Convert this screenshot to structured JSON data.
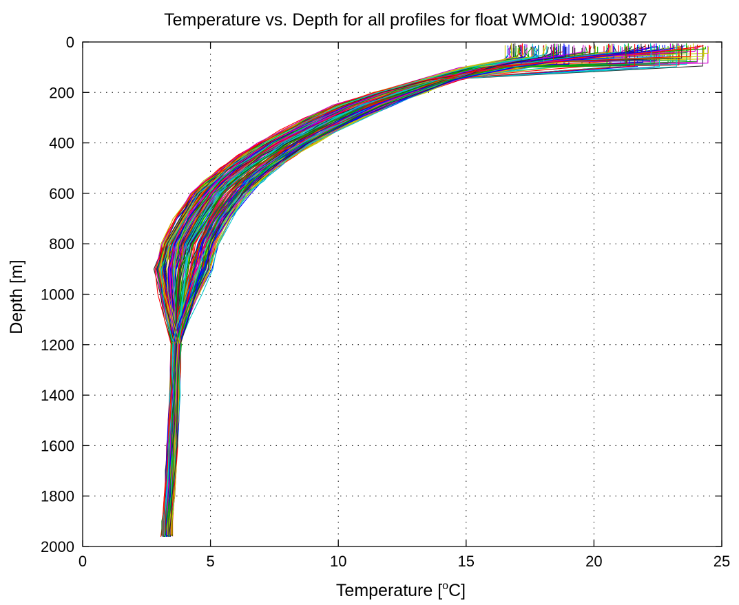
{
  "chart_data": {
    "type": "line",
    "title": "Temperature vs. Depth for all profiles for float WMOId: 1900387",
    "xlabel_main": "Temperature [",
    "xlabel_sup": "o",
    "xlabel_end": "C]",
    "ylabel": "Depth [m]",
    "xlim": [
      0,
      25
    ],
    "ylim": [
      0,
      2000
    ],
    "y_reversed": true,
    "grid": true,
    "xticks": [
      0,
      5,
      10,
      15,
      20,
      25
    ],
    "yticks": [
      0,
      200,
      400,
      600,
      800,
      1000,
      1200,
      1400,
      1600,
      1800,
      2000
    ],
    "xtick_labels": [
      "0",
      "5",
      "10",
      "15",
      "20",
      "25"
    ],
    "ytick_labels": [
      "0",
      "200",
      "400",
      "600",
      "800",
      "1000",
      "1200",
      "1400",
      "1600",
      "1800",
      "2000"
    ],
    "series_colors": [
      "#0000ff",
      "#00aa00",
      "#ff0000",
      "#00c8c8",
      "#cc00cc",
      "#c8c800",
      "#2a2a2a"
    ],
    "profile_count": 200,
    "representative_profile": {
      "depth": [
        5,
        20,
        40,
        60,
        80,
        100,
        150,
        200,
        250,
        300,
        350,
        400,
        450,
        500,
        550,
        600,
        700,
        800,
        900,
        1000,
        1100,
        1200,
        1300,
        1400,
        1500,
        1600,
        1700,
        1800,
        1900,
        1960
      ],
      "temperature": [
        21.0,
        21.0,
        21.0,
        19.0,
        17.5,
        16.2,
        14.0,
        12.4,
        11.0,
        9.9,
        8.9,
        8.0,
        7.2,
        6.5,
        5.9,
        5.4,
        4.7,
        4.2,
        3.95,
        3.8,
        3.7,
        3.65,
        3.62,
        3.6,
        3.55,
        3.5,
        3.45,
        3.4,
        3.3,
        3.25
      ]
    }
  }
}
